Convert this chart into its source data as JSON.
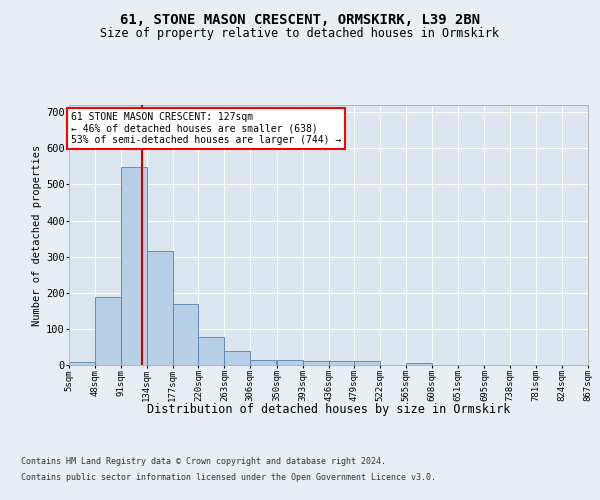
{
  "title1": "61, STONE MASON CRESCENT, ORMSKIRK, L39 2BN",
  "title2": "Size of property relative to detached houses in Ormskirk",
  "xlabel": "Distribution of detached houses by size in Ormskirk",
  "ylabel": "Number of detached properties",
  "footer1": "Contains HM Land Registry data © Crown copyright and database right 2024.",
  "footer2": "Contains public sector information licensed under the Open Government Licence v3.0.",
  "annotation_line1": "61 STONE MASON CRESCENT: 127sqm",
  "annotation_line2": "← 46% of detached houses are smaller (638)",
  "annotation_line3": "53% of semi-detached houses are larger (744) →",
  "bar_color": "#b8cfe8",
  "bar_edge_color": "#5580b0",
  "red_line_color": "#cc0000",
  "background_color": "#e8eef5",
  "plot_bg_color": "#dce6f0",
  "grid_color": "#ffffff",
  "property_sqm": 127,
  "bin_edges": [
    5,
    48,
    91,
    134,
    177,
    220,
    263,
    306,
    350,
    393,
    436,
    479,
    522,
    565,
    608,
    651,
    695,
    738,
    781,
    824,
    867
  ],
  "bin_labels": [
    "5sqm",
    "48sqm",
    "91sqm",
    "134sqm",
    "177sqm",
    "220sqm",
    "263sqm",
    "306sqm",
    "350sqm",
    "393sqm",
    "436sqm",
    "479sqm",
    "522sqm",
    "565sqm",
    "608sqm",
    "651sqm",
    "695sqm",
    "738sqm",
    "781sqm",
    "824sqm",
    "867sqm"
  ],
  "counts": [
    8,
    188,
    548,
    315,
    168,
    77,
    40,
    15,
    15,
    10,
    10,
    10,
    0,
    5,
    0,
    0,
    0,
    0,
    0,
    0
  ],
  "ylim": [
    0,
    720
  ],
  "yticks": [
    0,
    100,
    200,
    300,
    400,
    500,
    600,
    700
  ]
}
